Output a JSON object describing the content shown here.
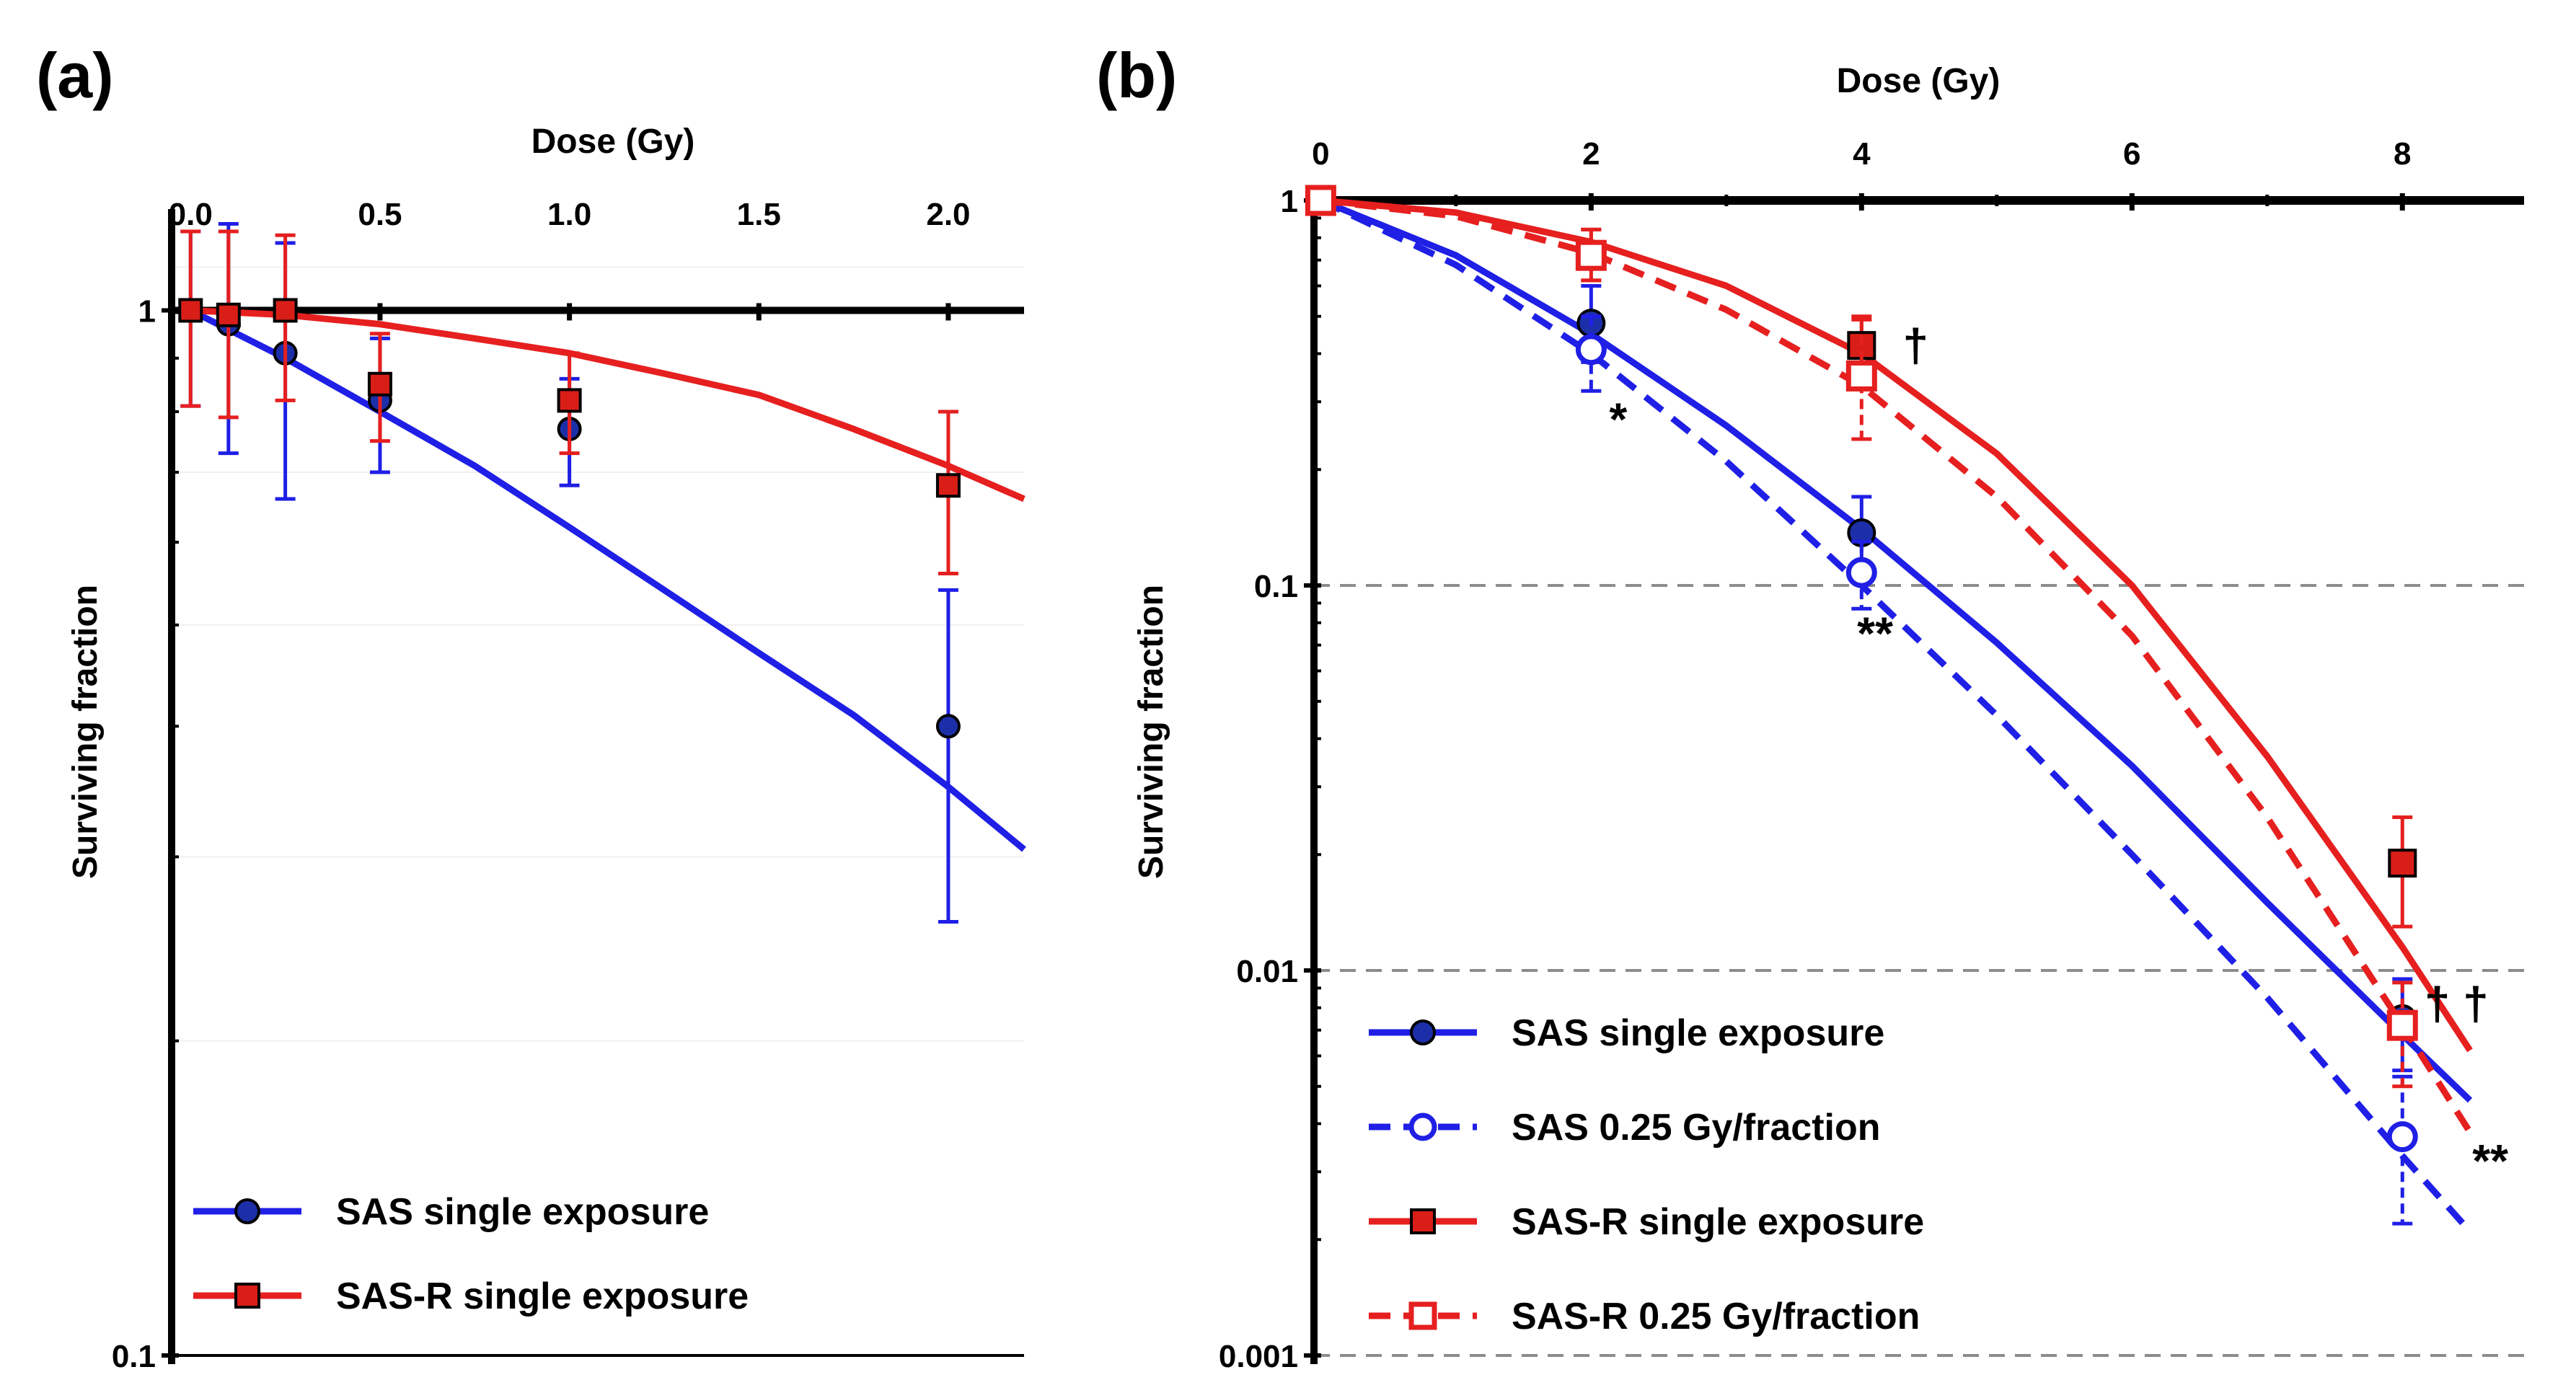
{
  "chart_data": [
    {
      "panel": "(a)",
      "type": "line",
      "xlabel": "Dose (Gy)",
      "ylabel": "Surviving fraction",
      "xlim": [
        -0.05,
        2.2
      ],
      "ylim": [
        0.1,
        1.25
      ],
      "yscale": "log",
      "x_ticks": [
        0.0,
        0.5,
        1.0,
        1.5,
        2.0
      ],
      "x_tick_labels": [
        "0.0",
        "0.5",
        "1.0",
        "1.5",
        "2.0"
      ],
      "y_tick_labels": [
        "0.1",
        "1"
      ],
      "series": [
        {
          "name": "SAS single exposure",
          "color": "#1f1fe6",
          "marker": "circle",
          "fill": "#1c2fa8",
          "dash": "solid",
          "x": [
            0.0,
            0.1,
            0.25,
            0.5,
            1.0,
            2.0
          ],
          "y": [
            1.0,
            0.97,
            0.91,
            0.82,
            0.77,
            0.4
          ],
          "err": [
            0.19,
            0.24,
            0.25,
            0.12,
            0.09,
            0.14
          ],
          "fit_x": [
            0,
            0.25,
            0.5,
            0.75,
            1.0,
            1.25,
            1.5,
            1.75,
            2.0,
            2.2
          ],
          "fit_y": [
            1.0,
            0.9,
            0.8,
            0.71,
            0.62,
            0.54,
            0.47,
            0.41,
            0.35,
            0.305
          ]
        },
        {
          "name": "SAS-R single exposure",
          "color": "#e61f1f",
          "marker": "square",
          "fill": "#d91e18",
          "dash": "solid",
          "x": [
            0.0,
            0.1,
            0.25,
            0.5,
            1.0,
            2.0
          ],
          "y": [
            1.0,
            0.99,
            1.0,
            0.85,
            0.82,
            0.68
          ],
          "err": [
            0.19,
            0.2,
            0.18,
            0.1,
            0.09,
            0.12
          ],
          "fit_x": [
            0,
            0.25,
            0.5,
            0.75,
            1.0,
            1.25,
            1.5,
            1.75,
            2.0,
            2.2
          ],
          "fit_y": [
            1.0,
            0.99,
            0.97,
            0.94,
            0.91,
            0.87,
            0.83,
            0.77,
            0.71,
            0.66
          ]
        }
      ],
      "legend_position": "bottom-left"
    },
    {
      "panel": "(b)",
      "type": "line",
      "xlabel": "Dose (Gy)",
      "ylabel": "Surviving fraction",
      "xlim": [
        -0.05,
        8.9
      ],
      "ylim": [
        0.001,
        1.0
      ],
      "yscale": "log",
      "x_ticks": [
        0,
        2,
        4,
        6,
        8
      ],
      "x_tick_labels": [
        "0",
        "2",
        "4",
        "6",
        "8"
      ],
      "y_tick_labels": [
        "0.001",
        "0.01",
        "0.1",
        "1"
      ],
      "grid": "dashed horizontal at 0.1, 0.01, 0.001",
      "series": [
        {
          "name": "SAS single exposure",
          "color": "#1f1fe6",
          "marker": "circle",
          "fill": "#1c2fa8",
          "dash": "solid",
          "x": [
            0,
            2,
            4,
            8
          ],
          "y": [
            1.0,
            0.48,
            0.137,
            0.0075
          ],
          "err_low": [
            1.0,
            0.38,
            0.11,
            0.0055
          ],
          "err_high": [
            1.0,
            0.6,
            0.17,
            0.0095
          ],
          "fit_x": [
            0,
            1,
            2,
            3,
            4,
            5,
            6,
            7,
            8,
            8.5
          ],
          "fit_y": [
            1.0,
            0.72,
            0.45,
            0.26,
            0.14,
            0.071,
            0.034,
            0.015,
            0.0068,
            0.0046
          ]
        },
        {
          "name": "SAS 0.25 Gy/fraction",
          "color": "#1f1fe6",
          "marker": "open-circle",
          "fill": "#ffffff",
          "dash": "dashed",
          "x": [
            0,
            2,
            4,
            8
          ],
          "y": [
            1.0,
            0.41,
            0.108,
            0.0037
          ],
          "err_low": [
            1.0,
            0.32,
            0.087,
            0.0022
          ],
          "err_high": [
            1.0,
            0.5,
            0.13,
            0.0053
          ],
          "fit_x": [
            0,
            1,
            2,
            3,
            4,
            5,
            6,
            7,
            8,
            8.5
          ],
          "fit_y": [
            1.0,
            0.68,
            0.4,
            0.21,
            0.1,
            0.046,
            0.02,
            0.0085,
            0.0033,
            0.0021
          ]
        },
        {
          "name": "SAS-R single exposure",
          "color": "#e61f1f",
          "marker": "square",
          "fill": "#d91e18",
          "dash": "solid",
          "x": [
            0,
            2,
            4,
            8
          ],
          "y": [
            1.0,
            0.72,
            0.42,
            0.019
          ],
          "err_low": [
            1.0,
            0.62,
            0.33,
            0.013
          ],
          "err_high": [
            1.0,
            0.84,
            0.5,
            0.025
          ],
          "fit_x": [
            0,
            1,
            2,
            3,
            4,
            5,
            6,
            7,
            8,
            8.5
          ],
          "fit_y": [
            1.0,
            0.93,
            0.78,
            0.6,
            0.4,
            0.22,
            0.1,
            0.036,
            0.0115,
            0.0062
          ]
        },
        {
          "name": "SAS-R  0.25 Gy/fraction",
          "color": "#e61f1f",
          "marker": "open-square",
          "fill": "#ffffff",
          "dash": "dashed",
          "x": [
            0,
            2,
            4,
            8
          ],
          "y": [
            1.0,
            0.72,
            0.35,
            0.0072
          ],
          "err_low": [
            1.0,
            0.62,
            0.24,
            0.005
          ],
          "err_high": [
            1.0,
            0.84,
            0.49,
            0.0093
          ],
          "fit_x": [
            0,
            1,
            2,
            3,
            4,
            5,
            6,
            7,
            8,
            8.5
          ],
          "fit_y": [
            1.0,
            0.91,
            0.73,
            0.52,
            0.33,
            0.17,
            0.074,
            0.025,
            0.0072,
            0.0038
          ]
        }
      ],
      "annotations": [
        {
          "text": "*",
          "x": 2.2,
          "y": 0.27
        },
        {
          "text": "†",
          "x": 4.4,
          "y": 0.42
        },
        {
          "text": "**",
          "x": 4.1,
          "y": 0.075
        },
        {
          "text": "† †",
          "x": 8.4,
          "y": 0.0082
        },
        {
          "text": "**",
          "x": 8.65,
          "y": 0.0032
        }
      ],
      "legend_position": "bottom-left"
    }
  ]
}
